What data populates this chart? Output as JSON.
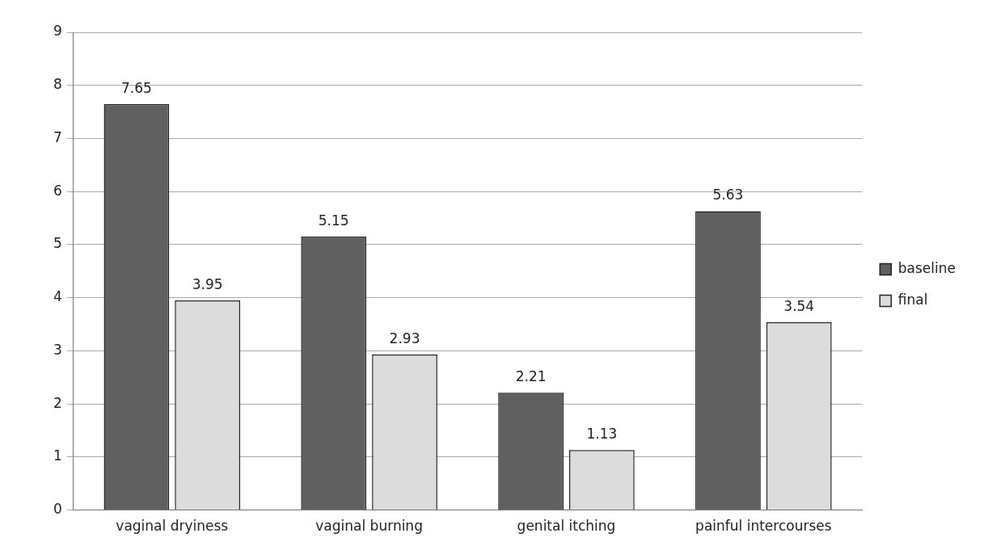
{
  "chart_data": {
    "type": "bar",
    "categories": [
      "vaginal dryiness",
      "vaginal burning",
      "genital itching",
      "painful intercourses"
    ],
    "series": [
      {
        "name": "baseline",
        "color": "#606060",
        "values": [
          7.65,
          5.15,
          2.21,
          5.63
        ]
      },
      {
        "name": "final",
        "color": "#dcdcdc",
        "values": [
          3.95,
          2.93,
          1.13,
          3.54
        ]
      }
    ],
    "ylim": [
      0,
      9
    ],
    "yticks": [
      0,
      1,
      2,
      3,
      4,
      5,
      6,
      7,
      8,
      9
    ],
    "grid": "y",
    "legend": "right",
    "data_labels": true
  }
}
